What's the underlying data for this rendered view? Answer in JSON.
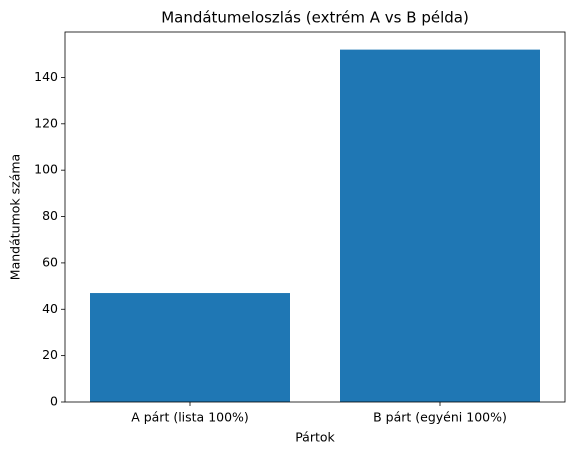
{
  "chart_data": {
    "type": "bar",
    "title": "Mandátumeloszlás (extrém A vs B példa)",
    "xlabel": "Pártok",
    "ylabel": "Mandátumok száma",
    "categories": [
      "A párt (lista 100%)",
      "B párt (egyéni 100%)"
    ],
    "values": [
      47,
      152
    ],
    "color": "#1f77b4",
    "ylim": [
      0,
      159.6
    ],
    "yticks": [
      0,
      20,
      40,
      60,
      80,
      100,
      120,
      140
    ]
  }
}
